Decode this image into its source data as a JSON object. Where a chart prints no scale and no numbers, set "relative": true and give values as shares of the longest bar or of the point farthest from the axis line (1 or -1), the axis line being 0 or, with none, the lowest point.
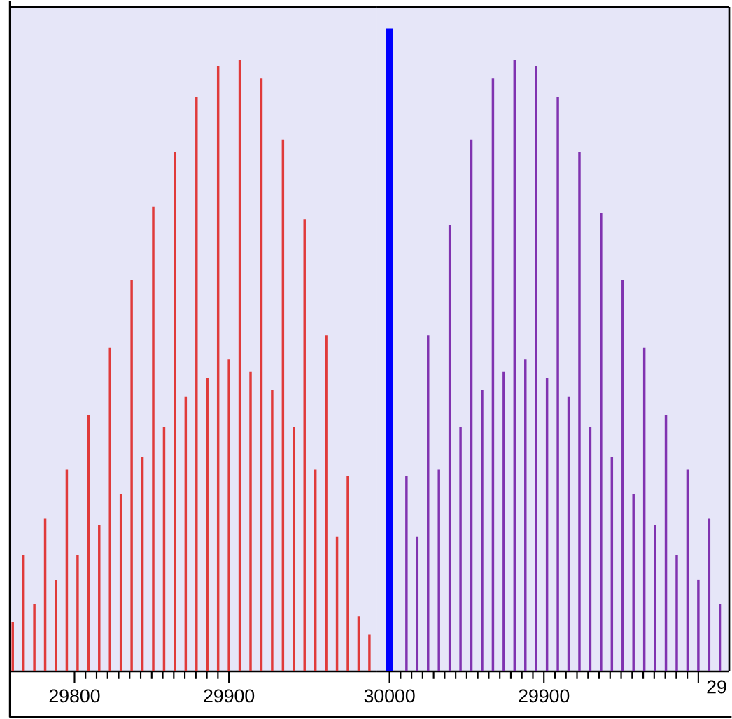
{
  "chart_data": [
    {
      "type": "bar",
      "relative": true,
      "xlim": [
        29759,
        29996
      ],
      "xticks": [
        29800,
        29900
      ],
      "series": [
        {
          "color": "#e03a3a",
          "x": [
            29760,
            29767,
            29774,
            29781,
            29788,
            29795,
            29802,
            29809,
            29816,
            29823,
            29830,
            29837,
            29844,
            29851,
            29858,
            29865,
            29872,
            29879,
            29886,
            29893,
            29900,
            29907,
            29914,
            29921,
            29928,
            29935,
            29942,
            29949,
            29956,
            29963,
            29970,
            29977,
            29984,
            29991
          ],
          "values": [
            0.08,
            0.19,
            0.11,
            0.25,
            0.15,
            0.33,
            0.19,
            0.42,
            0.24,
            0.53,
            0.29,
            0.64,
            0.35,
            0.76,
            0.4,
            0.85,
            0.45,
            0.94,
            0.48,
            0.99,
            0.51,
            1,
            0.49,
            0.97,
            0.46,
            0.87,
            0.4,
            0.74,
            0.33,
            0.55,
            0.22,
            0.32,
            0.09,
            0.06
          ]
        }
      ]
    },
    {
      "type": "bar",
      "relative": true,
      "xlim": [
        30008,
        29780
      ],
      "xticks": [
        30000,
        29900,
        {
          "value": 29800,
          "label": null
        }
      ],
      "annotations": [
        "29"
      ],
      "ref_lines": [
        {
          "axis": "x",
          "value": 30000,
          "color": "#0000ff"
        }
      ],
      "series": [
        {
          "color": "#8033b0",
          "x": [
            29989,
            29982,
            29975,
            29968,
            29961,
            29954,
            29947,
            29940,
            29933,
            29926,
            29919,
            29912,
            29905,
            29898,
            29891,
            29884,
            29877,
            29870,
            29863,
            29856,
            29849,
            29842,
            29835,
            29828,
            29821,
            29814,
            29807,
            29800,
            29793,
            29786
          ],
          "values": [
            0.32,
            0.22,
            0.55,
            0.33,
            0.73,
            0.4,
            0.87,
            0.46,
            0.97,
            0.49,
            1,
            0.51,
            0.99,
            0.48,
            0.94,
            0.45,
            0.85,
            0.4,
            0.75,
            0.35,
            0.64,
            0.29,
            0.53,
            0.24,
            0.42,
            0.19,
            0.33,
            0.15,
            0.25,
            0.11
          ]
        }
      ]
    }
  ]
}
